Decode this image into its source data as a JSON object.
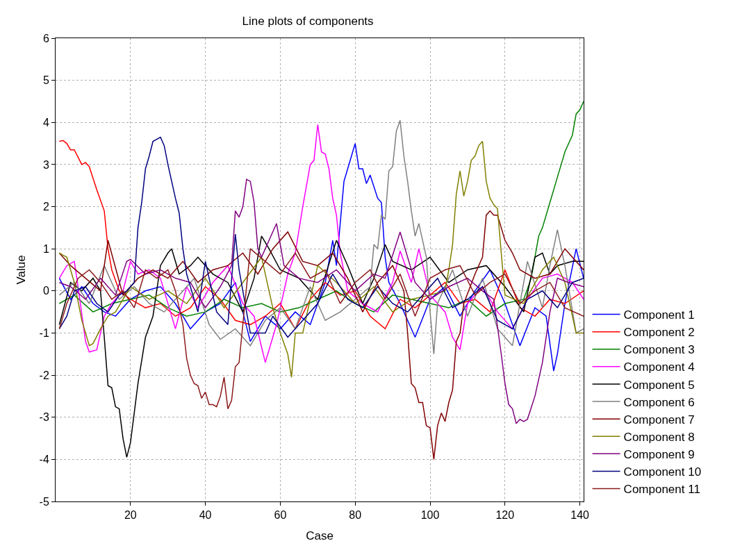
{
  "chart_data": {
    "type": "line",
    "title": "Line plots of components",
    "xlabel": "Case",
    "ylabel": "Value",
    "xlim": [
      0,
      141
    ],
    "xticks": [
      20,
      40,
      60,
      80,
      100,
      120,
      140
    ],
    "ylim": [
      -5,
      6
    ],
    "yticks": [
      -5,
      -4,
      -3,
      -2,
      -1,
      0,
      1,
      2,
      3,
      4,
      5,
      6
    ],
    "grid": true,
    "legend": "right",
    "line_style": "solid",
    "series": [
      {
        "name": "Component 1",
        "color": "#0000ff",
        "x": [
          1,
          4,
          7,
          10,
          13,
          16,
          20,
          24,
          28,
          32,
          36,
          40,
          44,
          48,
          52,
          56,
          60,
          64,
          68,
          72,
          74,
          75,
          77,
          79,
          80,
          81,
          82,
          83,
          84,
          86,
          87,
          88,
          89,
          92,
          96,
          100,
          104,
          108,
          112,
          116,
          120,
          124,
          128,
          131,
          133,
          134,
          136,
          139,
          141
        ],
        "values": [
          0.3,
          -0.2,
          0.1,
          -0.3,
          -0.5,
          -0.6,
          -0.2,
          0.0,
          0.1,
          -0.3,
          -0.9,
          -0.5,
          -0.3,
          0.2,
          -1.2,
          -0.6,
          -0.9,
          -0.5,
          -0.8,
          0.2,
          1.2,
          0.6,
          2.6,
          3.2,
          3.5,
          2.9,
          2.9,
          2.55,
          2.75,
          2.2,
          2.1,
          0.8,
          0.2,
          -0.3,
          -1.1,
          -0.2,
          0.1,
          -0.6,
          0.0,
          0.5,
          -0.3,
          -1.3,
          -0.4,
          -0.6,
          -1.9,
          -1.5,
          -0.3,
          1.0,
          0.3
        ]
      },
      {
        "name": "Component 2",
        "color": "#ff0000",
        "x": [
          1,
          2,
          3,
          4,
          5,
          7,
          8,
          9,
          11,
          13,
          14,
          15,
          17,
          20,
          24,
          28,
          32,
          36,
          40,
          44,
          48,
          52,
          56,
          60,
          64,
          68,
          72,
          76,
          80,
          84,
          88,
          92,
          96,
          100,
          104,
          108,
          112,
          116,
          120,
          124,
          128,
          132,
          136,
          141
        ],
        "values": [
          3.55,
          3.57,
          3.5,
          3.35,
          3.35,
          3.0,
          3.05,
          2.95,
          2.4,
          1.9,
          1.0,
          0.5,
          0.0,
          -0.2,
          -0.4,
          -0.3,
          -0.6,
          -0.4,
          0.1,
          -0.2,
          -0.7,
          -0.8,
          -0.6,
          -0.3,
          -0.9,
          -0.2,
          0.2,
          -0.1,
          0.0,
          -0.6,
          -0.9,
          -0.2,
          -0.4,
          -0.1,
          0.2,
          -0.3,
          -0.2,
          -0.5,
          0.5,
          -0.4,
          -0.6,
          -0.2,
          -0.3,
          0.0
        ]
      },
      {
        "name": "Component 3",
        "color": "#008000",
        "x": [
          1,
          5,
          10,
          15,
          20,
          25,
          30,
          35,
          40,
          45,
          50,
          55,
          60,
          65,
          70,
          75,
          80,
          85,
          90,
          95,
          100,
          105,
          110,
          115,
          120,
          125,
          127,
          129,
          130,
          132,
          134,
          136,
          138,
          139,
          140,
          141
        ],
        "values": [
          -0.3,
          -0.1,
          -0.5,
          -0.3,
          -0.2,
          -0.1,
          -0.4,
          -0.6,
          -0.5,
          -0.2,
          -0.4,
          -0.3,
          -0.5,
          -0.4,
          -0.2,
          0.0,
          -0.3,
          -0.5,
          -0.1,
          -0.2,
          -0.3,
          -0.4,
          -0.2,
          -0.6,
          -0.3,
          -0.2,
          0.3,
          1.3,
          1.5,
          2.1,
          2.7,
          3.3,
          3.7,
          4.2,
          4.3,
          4.5
        ]
      },
      {
        "name": "Component 4",
        "color": "#ff00ff",
        "x": [
          1,
          3,
          5,
          6,
          8,
          9,
          11,
          13,
          15,
          18,
          20,
          22,
          25,
          28,
          32,
          35,
          38,
          42,
          46,
          50,
          53,
          56,
          59,
          62,
          64,
          66,
          68,
          69,
          70,
          71,
          72,
          73,
          74,
          75,
          76,
          78,
          82,
          86,
          90,
          92,
          95,
          97,
          100,
          104,
          106,
          108,
          110,
          114,
          118,
          122,
          126,
          130,
          134,
          138,
          141
        ],
        "values": [
          0.3,
          0.6,
          0.7,
          0.1,
          -1.2,
          -1.45,
          -1.4,
          -0.6,
          -0.3,
          0.0,
          0.7,
          0.4,
          0.5,
          0.3,
          -0.9,
          0.1,
          -0.4,
          0.2,
          0.6,
          -0.3,
          -0.6,
          -1.7,
          -0.8,
          0.4,
          0.9,
          2.0,
          3.0,
          3.1,
          3.95,
          3.3,
          3.25,
          2.9,
          2.2,
          1.8,
          0.9,
          0.0,
          -0.3,
          -0.5,
          0.2,
          0.95,
          0.2,
          1.0,
          -0.1,
          -0.5,
          -1.1,
          -1.4,
          -0.3,
          0.1,
          -0.5,
          -0.9,
          -0.2,
          0.3,
          0.4,
          0.2,
          -0.2
        ]
      },
      {
        "name": "Component 5",
        "color": "#000000",
        "x": [
          1,
          4,
          7,
          10,
          12,
          13,
          14,
          15,
          16,
          17,
          18,
          19,
          20,
          22,
          24,
          26,
          28,
          30,
          31,
          33,
          36,
          38,
          42,
          46,
          50,
          53,
          55,
          57,
          60,
          65,
          70,
          75,
          76,
          78,
          82,
          85,
          88,
          90,
          95,
          100,
          105,
          110,
          115,
          120,
          125,
          128,
          130,
          132,
          134,
          138,
          141
        ],
        "values": [
          -0.8,
          0.2,
          0.0,
          0.3,
          0.0,
          -1.1,
          -2.25,
          -2.3,
          -2.75,
          -2.8,
          -3.5,
          -3.95,
          -3.6,
          -2.2,
          -1.1,
          -0.6,
          0.6,
          0.9,
          1.0,
          0.4,
          0.6,
          0.8,
          0.4,
          0.2,
          -0.5,
          0.3,
          1.3,
          1.0,
          0.5,
          0.3,
          -0.2,
          1.2,
          1.0,
          0.6,
          -0.3,
          0.3,
          1.1,
          0.7,
          0.5,
          0.8,
          0.2,
          0.5,
          0.6,
          0.1,
          -0.5,
          0.8,
          0.9,
          0.4,
          0.6,
          0.7,
          0.7
        ]
      },
      {
        "name": "Component 6",
        "color": "#808080",
        "x": [
          1,
          5,
          9,
          13,
          17,
          21,
          25,
          29,
          33,
          37,
          41,
          44,
          48,
          52,
          56,
          60,
          64,
          68,
          72,
          76,
          80,
          84,
          85,
          86,
          87,
          88,
          89,
          90,
          91,
          92,
          93,
          94,
          95,
          96,
          97,
          98,
          99,
          100,
          101,
          102,
          106,
          110,
          114,
          118,
          122,
          126,
          130,
          132,
          134,
          136,
          139,
          141
        ],
        "values": [
          -0.1,
          0.2,
          -0.3,
          0.6,
          -0.2,
          0.1,
          -0.3,
          -0.5,
          -0.1,
          0.3,
          -0.8,
          -1.15,
          -0.9,
          -1.3,
          -0.7,
          -0.4,
          -0.9,
          0.1,
          -0.7,
          -0.5,
          -0.2,
          0.1,
          1.1,
          1.0,
          1.8,
          1.7,
          2.85,
          2.95,
          3.8,
          4.05,
          3.2,
          2.6,
          1.9,
          1.3,
          1.6,
          1.2,
          0.8,
          -0.5,
          -1.5,
          -0.3,
          0.5,
          -0.6,
          0.3,
          -0.9,
          -1.3,
          0.7,
          -0.4,
          0.6,
          1.45,
          0.6,
          -1.0,
          -0.9
        ]
      },
      {
        "name": "Component 7",
        "color": "#800000",
        "x": [
          1,
          4,
          8,
          12,
          14,
          18,
          22,
          26,
          30,
          34,
          38,
          42,
          46,
          50,
          54,
          58,
          62,
          66,
          70,
          74,
          78,
          82,
          86,
          90,
          93,
          94,
          95,
          96,
          97,
          98,
          99,
          100,
          101,
          102,
          103,
          104,
          105,
          106,
          107,
          108,
          109,
          112,
          114,
          115,
          116,
          117,
          118,
          119,
          120,
          122,
          124,
          128,
          132,
          136,
          141
        ],
        "values": [
          0.9,
          0.6,
          0.3,
          0.0,
          1.2,
          -0.1,
          0.3,
          0.5,
          0.3,
          0.7,
          0.2,
          0.5,
          0.6,
          0.9,
          0.4,
          1.0,
          1.4,
          0.7,
          0.6,
          0.9,
          0.3,
          -0.5,
          0.2,
          0.6,
          0.0,
          -1.0,
          -2.2,
          -2.3,
          -2.65,
          -2.65,
          -3.2,
          -3.25,
          -4.0,
          -3.2,
          -2.9,
          -3.1,
          -2.65,
          -2.35,
          -1.2,
          -1.0,
          -0.3,
          0.4,
          0.8,
          1.8,
          1.9,
          1.8,
          1.8,
          1.5,
          1.2,
          0.9,
          0.5,
          0.3,
          0.4,
          1.0,
          0.5
        ]
      },
      {
        "name": "Component 8",
        "color": "#808000",
        "x": [
          1,
          2,
          3,
          5,
          7,
          9,
          10,
          12,
          14,
          16,
          20,
          25,
          30,
          35,
          40,
          45,
          50,
          55,
          58,
          60,
          62,
          63,
          64,
          66,
          70,
          75,
          80,
          85,
          90,
          95,
          100,
          104,
          105,
          106,
          107,
          108,
          109,
          110,
          111,
          112,
          113,
          114,
          115,
          116,
          117,
          118,
          119,
          120,
          125,
          130,
          133,
          136,
          139,
          141
        ],
        "values": [
          0.9,
          0.85,
          0.8,
          0.2,
          -0.7,
          -1.3,
          -1.25,
          -0.9,
          -0.6,
          -0.5,
          0.1,
          -0.2,
          0.0,
          -0.3,
          0.3,
          -0.4,
          0.2,
          0.8,
          -0.4,
          -1.0,
          -1.5,
          -2.05,
          -1.0,
          -1.0,
          0.6,
          0.2,
          -0.3,
          0.1,
          -0.5,
          -0.2,
          -0.1,
          0.0,
          0.5,
          1.1,
          2.3,
          2.85,
          2.25,
          2.6,
          3.1,
          3.2,
          3.45,
          3.55,
          2.6,
          2.2,
          2.05,
          1.95,
          0.9,
          -0.1,
          -0.3,
          0.5,
          0.8,
          0.2,
          -1.0,
          -1.0
        ]
      },
      {
        "name": "Component 9",
        "color": "#800080",
        "x": [
          1,
          4,
          8,
          12,
          16,
          19,
          20,
          24,
          28,
          32,
          36,
          40,
          44,
          47,
          48,
          49,
          50,
          51,
          52,
          53,
          54,
          55,
          57,
          59,
          61,
          65,
          70,
          75,
          80,
          85,
          88,
          92,
          96,
          100,
          105,
          110,
          114,
          117,
          119,
          120,
          121,
          122,
          123,
          124,
          125,
          126,
          128,
          130,
          132,
          134,
          137,
          141
        ],
        "values": [
          0.2,
          0.1,
          -0.2,
          0.3,
          -0.1,
          0.7,
          0.75,
          0.4,
          0.5,
          0.3,
          0.2,
          -0.4,
          0.1,
          0.6,
          1.9,
          1.75,
          2.0,
          2.65,
          2.6,
          2.1,
          1.0,
          0.8,
          1.2,
          1.6,
          0.6,
          0.3,
          0.2,
          0.5,
          0.0,
          0.4,
          0.3,
          1.4,
          0.2,
          -0.2,
          0.1,
          0.3,
          0.0,
          -0.2,
          -1.5,
          -2.2,
          -2.7,
          -2.8,
          -3.15,
          -3.05,
          -3.1,
          -3.05,
          -2.5,
          -1.7,
          -0.5,
          0.3,
          0.2,
          0.1
        ]
      },
      {
        "name": "Component 10",
        "color": "#000080",
        "x": [
          1,
          3,
          5,
          8,
          11,
          14,
          17,
          19,
          21,
          22,
          23,
          24,
          25,
          26,
          27,
          28,
          29,
          30,
          31,
          32,
          33,
          34,
          35,
          38,
          40,
          43,
          46,
          48,
          49,
          52,
          56,
          58,
          62,
          66,
          70,
          74,
          78,
          82,
          86,
          90,
          94,
          98,
          102,
          106,
          110,
          114,
          118,
          122,
          126,
          130,
          134,
          138,
          141
        ],
        "values": [
          -0.9,
          -0.6,
          0.0,
          0.1,
          -0.3,
          -0.5,
          -0.1,
          0.0,
          0.2,
          1.5,
          2.1,
          2.9,
          3.2,
          3.55,
          3.6,
          3.65,
          3.45,
          3.0,
          2.6,
          2.2,
          1.85,
          1.0,
          0.4,
          -0.5,
          0.7,
          -0.5,
          -0.8,
          1.35,
          0.5,
          -1.0,
          -1.0,
          -0.6,
          -1.1,
          -0.7,
          -0.3,
          0.4,
          -0.2,
          -0.4,
          0.1,
          -0.3,
          -0.5,
          -0.1,
          0.3,
          -0.4,
          -0.2,
          0.1,
          -0.7,
          -0.9,
          -0.2,
          0.0,
          -0.4,
          0.2,
          0.3
        ]
      },
      {
        "name": "Component 11",
        "color": "#8b1a1a",
        "x": [
          1,
          3,
          6,
          9,
          12,
          15,
          18,
          21,
          24,
          27,
          30,
          32,
          34,
          35,
          36,
          37,
          38,
          39,
          40,
          41,
          42,
          43,
          44,
          45,
          46,
          47,
          48,
          49,
          52,
          56,
          60,
          64,
          68,
          72,
          76,
          80,
          84,
          88,
          92,
          96,
          100,
          104,
          108,
          112,
          116,
          120,
          124,
          128,
          132,
          136,
          141
        ],
        "values": [
          -0.9,
          -0.3,
          0.3,
          0.5,
          0.2,
          -0.2,
          0.0,
          -0.4,
          0.5,
          0.3,
          0.5,
          0.0,
          -0.8,
          -1.6,
          -2.0,
          -2.2,
          -2.25,
          -2.55,
          -2.4,
          -2.7,
          -2.7,
          -2.75,
          -2.5,
          -2.05,
          -2.8,
          -2.6,
          -1.8,
          -1.7,
          1.0,
          0.7,
          0.4,
          0.9,
          0.3,
          0.5,
          -0.3,
          0.2,
          0.5,
          -0.2,
          0.4,
          -0.6,
          0.3,
          0.5,
          0.6,
          -0.1,
          0.2,
          0.4,
          -0.3,
          0.0,
          0.2,
          -0.4,
          -0.6
        ]
      }
    ]
  }
}
